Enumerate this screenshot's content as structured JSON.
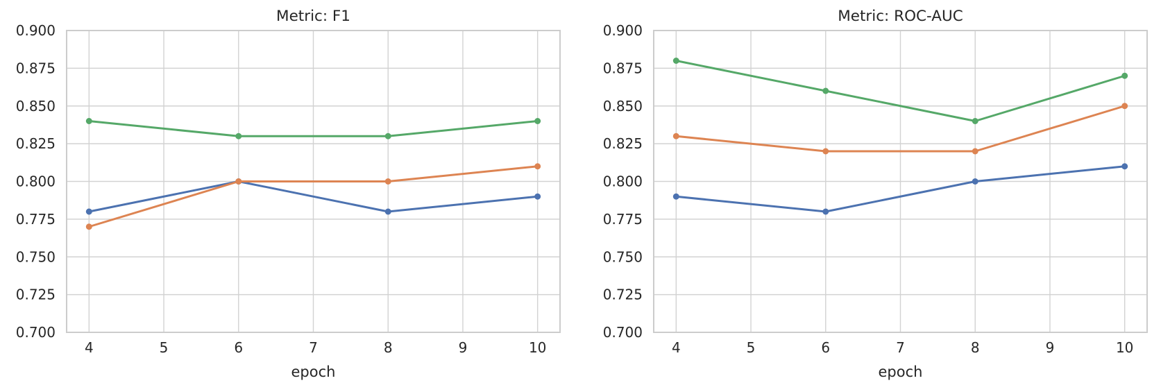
{
  "figure": {
    "background": "#ffffff",
    "grid_color": "#d2d2d2",
    "spine_color": "#cccccc",
    "text_color": "#262626"
  },
  "chart_data": [
    {
      "type": "line",
      "title": "Metric: F1",
      "xlabel": "epoch",
      "ylabel": "",
      "x": [
        4,
        6,
        8,
        10
      ],
      "xlim": [
        3.7,
        10.3
      ],
      "ylim": [
        0.7,
        0.9
      ],
      "grid": true,
      "legend": "none",
      "marker": "circle",
      "xticks": {
        "values": [
          4,
          5,
          6,
          7,
          8,
          9,
          10
        ],
        "labels": [
          "4",
          "5",
          "6",
          "7",
          "8",
          "9",
          "10"
        ]
      },
      "yticks": {
        "values": [
          0.7,
          0.725,
          0.75,
          0.775,
          0.8,
          0.825,
          0.85,
          0.875,
          0.9
        ],
        "labels": [
          "0.700",
          "0.725",
          "0.750",
          "0.775",
          "0.800",
          "0.825",
          "0.850",
          "0.875",
          "0.900"
        ]
      },
      "series": [
        {
          "name": "blue-series",
          "color": "#4C72B0",
          "values": [
            0.78,
            0.8,
            0.78,
            0.79
          ]
        },
        {
          "name": "orange-series",
          "color": "#DD8452",
          "values": [
            0.77,
            0.8,
            0.8,
            0.81
          ]
        },
        {
          "name": "green-series",
          "color": "#55A868",
          "values": [
            0.84,
            0.83,
            0.83,
            0.84
          ]
        }
      ]
    },
    {
      "type": "line",
      "title": "Metric: ROC-AUC",
      "xlabel": "epoch",
      "ylabel": "",
      "x": [
        4,
        6,
        8,
        10
      ],
      "xlim": [
        3.7,
        10.3
      ],
      "ylim": [
        0.7,
        0.9
      ],
      "grid": true,
      "legend": "none",
      "marker": "circle",
      "xticks": {
        "values": [
          4,
          5,
          6,
          7,
          8,
          9,
          10
        ],
        "labels": [
          "4",
          "5",
          "6",
          "7",
          "8",
          "9",
          "10"
        ]
      },
      "yticks": {
        "values": [
          0.7,
          0.725,
          0.75,
          0.775,
          0.8,
          0.825,
          0.85,
          0.875,
          0.9
        ],
        "labels": [
          "0.700",
          "0.725",
          "0.750",
          "0.775",
          "0.800",
          "0.825",
          "0.850",
          "0.875",
          "0.900"
        ]
      },
      "series": [
        {
          "name": "blue-series",
          "color": "#4C72B0",
          "values": [
            0.79,
            0.78,
            0.8,
            0.81
          ]
        },
        {
          "name": "orange-series",
          "color": "#DD8452",
          "values": [
            0.83,
            0.82,
            0.82,
            0.85
          ]
        },
        {
          "name": "green-series",
          "color": "#55A868",
          "values": [
            0.88,
            0.86,
            0.84,
            0.87
          ]
        }
      ]
    }
  ]
}
